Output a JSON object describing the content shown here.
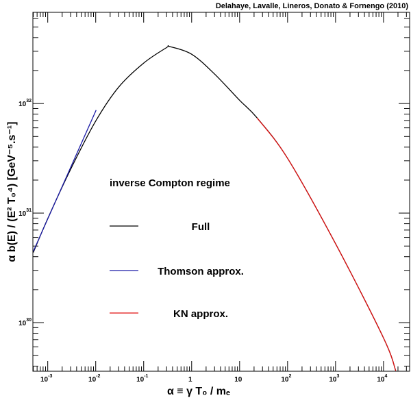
{
  "chart_data": {
    "type": "line",
    "annotation": "Delahaye, Lavalle, Lineros, Donato & Fornengo (2010)",
    "legend_title": "inverse Compton regime",
    "x_label": "α ≡ γ T₀ / mₑ",
    "y_label": "α b(E) / (E² T₀⁴)   [GeV⁻⁵.s⁻¹]",
    "log_x": true,
    "log_y": true,
    "xlim": [
      0.00049,
      35000
    ],
    "ylim": [
      3.6e+29,
      6.8e+32
    ],
    "xticks": [
      {
        "value": 0.001,
        "label": "10",
        "sup": "-3"
      },
      {
        "value": 0.01,
        "label": "10",
        "sup": "-2"
      },
      {
        "value": 0.1,
        "label": "10",
        "sup": "-1"
      },
      1,
      10,
      {
        "value": 100,
        "label": "10",
        "sup": "2"
      },
      {
        "value": 1000,
        "label": "10",
        "sup": "3"
      },
      {
        "value": 10000,
        "label": "10",
        "sup": "4"
      }
    ],
    "yticks": [
      {
        "value": 1e+30,
        "label": "10",
        "sup": "30"
      },
      {
        "value": 1e+31,
        "label": "10",
        "sup": "31"
      },
      {
        "value": 1e+32,
        "label": "10",
        "sup": "32"
      }
    ],
    "series": [
      {
        "name": "Full",
        "color": "#000000",
        "x": [
          0.0005,
          0.001,
          0.003,
          0.01,
          0.03,
          0.1,
          0.3,
          0.35,
          1,
          3,
          10,
          23,
          100,
          1000,
          10000,
          18000
        ],
        "values": [
          4.37e+30,
          8.91e+30,
          2.51e+31,
          6.92e+31,
          1.41e+32,
          2.34e+32,
          3.24e+32,
          3.31e+32,
          2.82e+32,
          1.86e+32,
          1.07e+32,
          7.41e+31,
          3.16e+31,
          5.25e+30,
          7.24e+29,
          3.63e+29
        ]
      },
      {
        "name": "Thomson approx.",
        "color": "#1a1aa6",
        "x": [
          0.0005,
          0.0102
        ],
        "values": [
          4.47e+30,
          8.71e+31
        ]
      },
      {
        "name": "KN approx.",
        "color": "#e01010",
        "x": [
          23,
          100,
          1000,
          10000,
          18000
        ],
        "values": [
          7.41e+31,
          3.16e+31,
          5.25e+30,
          7.24e+29,
          3.63e+29
        ]
      }
    ]
  }
}
